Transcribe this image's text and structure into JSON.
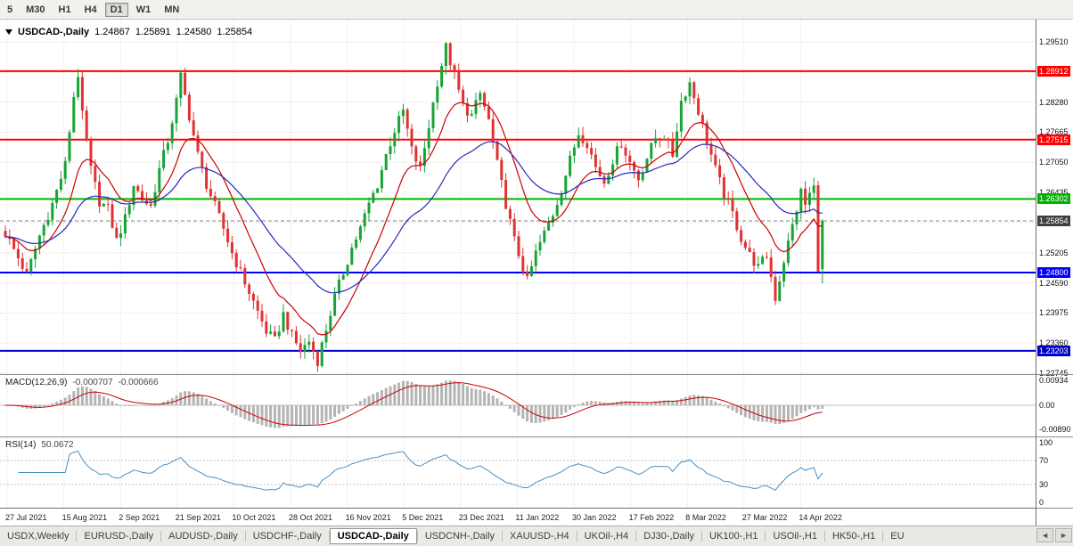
{
  "toolbar": {
    "timeframes": [
      "5",
      "M30",
      "H1",
      "H4",
      "D1",
      "W1",
      "MN"
    ],
    "active": "D1"
  },
  "header": {
    "symbol": "USDCAD-,Daily",
    "open": "1.24867",
    "high": "1.25891",
    "low": "1.24580",
    "close": "1.25854"
  },
  "indicators": {
    "macd": {
      "label": "MACD(12,26,9)",
      "value_main": "-0.000707",
      "value_signal": "-0.000666",
      "axis_labels": [
        {
          "v": 0.00934,
          "text": "0.00934"
        },
        {
          "v": 0,
          "text": "0.00"
        },
        {
          "v": -0.0089,
          "text": "-0.00890"
        }
      ]
    },
    "rsi": {
      "label": "RSI(14)",
      "value": "50.0672",
      "axis_labels": [
        "100",
        "70",
        "30",
        "0"
      ],
      "levels": [
        70,
        30
      ]
    }
  },
  "price_axis": {
    "grid_labels": [
      "1.29510",
      "1.28280",
      "1.27665",
      "1.27050",
      "1.26435",
      "1.25205",
      "1.24590",
      "1.23975",
      "1.23360",
      "1.22745"
    ],
    "badges": [
      {
        "text": "1.28912",
        "color": "#ff0000"
      },
      {
        "text": "1.27515",
        "color": "#ff0000"
      },
      {
        "text": "1.26302",
        "color": "#00b300"
      },
      {
        "text": "1.25854",
        "color": "#3f3f3f",
        "current": true
      },
      {
        "text": "1.24800",
        "color": "#0000ff"
      },
      {
        "text": "1.23203",
        "color": "#0000cc"
      }
    ]
  },
  "date_axis": [
    "27 Jul 2021",
    "15 Aug 2021",
    "2 Sep 2021",
    "21 Sep 2021",
    "10 Oct 2021",
    "28 Oct 2021",
    "16 Nov 2021",
    "5 Dec 2021",
    "23 Dec 2021",
    "11 Jan 2022",
    "30 Jan 2022",
    "17 Feb 2022",
    "8 Mar 2022",
    "27 Mar 2022",
    "14 Apr 2022"
  ],
  "chart_data": {
    "type": "candlestick",
    "symbol": "USDCAD",
    "timeframe": "Daily",
    "bar_count": 192,
    "price_range_visible": [
      1.2273,
      1.2996
    ],
    "price_grid": [
      1.2951,
      1.28895,
      1.2828,
      1.27665,
      1.2705,
      1.26435,
      1.2582,
      1.25205,
      1.2459,
      1.23975,
      1.2336,
      1.22745
    ],
    "current_bar": {
      "open": 1.24867,
      "high": 1.25891,
      "low": 1.2458,
      "close": 1.25854
    },
    "close_waypoints": [
      [
        0,
        1.256
      ],
      [
        3,
        1.251
      ],
      [
        5,
        1.2475
      ],
      [
        8,
        1.2555
      ],
      [
        11,
        1.262
      ],
      [
        14,
        1.27
      ],
      [
        16,
        1.284
      ],
      [
        17,
        1.2885
      ],
      [
        18,
        1.28
      ],
      [
        20,
        1.269
      ],
      [
        22,
        1.2625
      ],
      [
        24,
        1.261
      ],
      [
        26,
        1.2545
      ],
      [
        28,
        1.259
      ],
      [
        30,
        1.266
      ],
      [
        32,
        1.263
      ],
      [
        34,
        1.2615
      ],
      [
        36,
        1.269
      ],
      [
        38,
        1.275
      ],
      [
        40,
        1.283
      ],
      [
        41,
        1.288
      ],
      [
        43,
        1.28
      ],
      [
        45,
        1.272
      ],
      [
        47,
        1.266
      ],
      [
        49,
        1.2615
      ],
      [
        51,
        1.257
      ],
      [
        53,
        1.252
      ],
      [
        55,
        1.248
      ],
      [
        57,
        1.244
      ],
      [
        59,
        1.24
      ],
      [
        61,
        1.236
      ],
      [
        63,
        1.234
      ],
      [
        65,
        1.2395
      ],
      [
        67,
        1.235
      ],
      [
        69,
        1.232
      ],
      [
        71,
        1.234
      ],
      [
        73,
        1.23
      ],
      [
        75,
        1.2365
      ],
      [
        77,
        1.243
      ],
      [
        79,
        1.248
      ],
      [
        81,
        1.253
      ],
      [
        83,
        1.257
      ],
      [
        85,
        1.262
      ],
      [
        87,
        1.266
      ],
      [
        89,
        1.272
      ],
      [
        91,
        1.277
      ],
      [
        93,
        1.281
      ],
      [
        95,
        1.273
      ],
      [
        97,
        1.269
      ],
      [
        99,
        1.278
      ],
      [
        101,
        1.287
      ],
      [
        103,
        1.294
      ],
      [
        105,
        1.288
      ],
      [
        107,
        1.282
      ],
      [
        109,
        1.28
      ],
      [
        111,
        1.2845
      ],
      [
        113,
        1.279
      ],
      [
        115,
        1.27
      ],
      [
        117,
        1.262
      ],
      [
        119,
        1.2545
      ],
      [
        121,
        1.249
      ],
      [
        122,
        1.2462
      ],
      [
        124,
        1.252
      ],
      [
        126,
        1.256
      ],
      [
        128,
        1.26
      ],
      [
        130,
        1.265
      ],
      [
        132,
        1.271
      ],
      [
        134,
        1.2765
      ],
      [
        136,
        1.2745
      ],
      [
        138,
        1.2695
      ],
      [
        140,
        1.2665
      ],
      [
        142,
        1.271
      ],
      [
        144,
        1.2745
      ],
      [
        146,
        1.2705
      ],
      [
        148,
        1.2672
      ],
      [
        150,
        1.2715
      ],
      [
        152,
        1.2755
      ],
      [
        154,
        1.276
      ],
      [
        156,
        1.272
      ],
      [
        158,
        1.283
      ],
      [
        160,
        1.2868
      ],
      [
        162,
        1.281
      ],
      [
        164,
        1.275
      ],
      [
        166,
        1.269
      ],
      [
        168,
        1.264
      ],
      [
        170,
        1.26
      ],
      [
        172,
        1.255
      ],
      [
        174,
        1.2515
      ],
      [
        176,
        1.249
      ],
      [
        178,
        1.2515
      ],
      [
        180,
        1.2428
      ],
      [
        182,
        1.2505
      ],
      [
        184,
        1.2575
      ],
      [
        186,
        1.2645
      ],
      [
        187,
        1.2618
      ],
      [
        188,
        1.264
      ],
      [
        189,
        1.2658
      ],
      [
        190,
        1.2482
      ],
      [
        191,
        1.25854
      ]
    ],
    "overlays": [
      {
        "name": "ma-fast",
        "period": 13,
        "color": "#cc0000"
      },
      {
        "name": "ma-slow",
        "period": 34,
        "color": "#2929b8"
      }
    ],
    "h_lines": [
      {
        "price": 1.28912,
        "color": "#ff0000",
        "style": "level"
      },
      {
        "price": 1.27515,
        "color": "#ff0000",
        "style": "level"
      },
      {
        "price": 1.26302,
        "color": "#00b300",
        "style": "level"
      },
      {
        "price": 1.248,
        "color": "#0000ff",
        "style": "level"
      },
      {
        "price": 1.23203,
        "color": "#0000cc",
        "style": "level"
      },
      {
        "price": 1.25854,
        "color": "#808080",
        "style": "current"
      }
    ],
    "macd_params": {
      "fast": 12,
      "slow": 26,
      "signal": 9
    },
    "rsi_period": 14
  },
  "tabs": {
    "items": [
      "USDX,Weekly",
      "EURUSD-,Daily",
      "AUDUSD-,Daily",
      "USDCHF-,Daily",
      "USDCAD-,Daily",
      "USDCNH-,Daily",
      "XAUUSD-,H4",
      "UKOil-,H4",
      "DJ30-,Daily",
      "UK100-,H1",
      "USOil-,H1",
      "HK50-,H1",
      "EU"
    ],
    "active": "USDCAD-,Daily",
    "scroll_left_icon": "◄",
    "scroll_right_icon": "►"
  },
  "colors": {
    "up": "#18a335",
    "down": "#e03232",
    "grid": "#d9d9d9",
    "macd_hist": "#b4b4b4",
    "macd_signal": "#cc0000",
    "rsi_line": "#4a8fc2"
  }
}
